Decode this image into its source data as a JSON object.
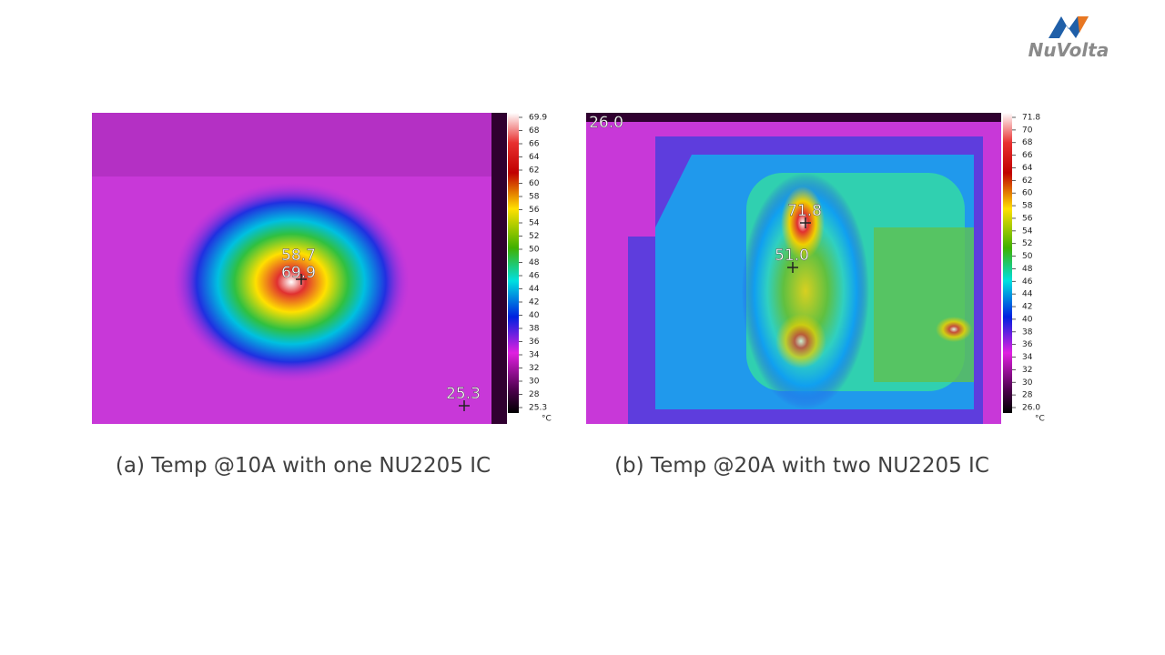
{
  "logo": "NuVolta",
  "panels": [
    {
      "caption": "(a) Temp @10A with one NU2205 IC",
      "spots": [
        "58.7",
        "69.9",
        "25.3"
      ],
      "scale": {
        "ticks": [
          "69.9",
          "68",
          "66",
          "64",
          "62",
          "60",
          "58",
          "56",
          "54",
          "52",
          "50",
          "48",
          "46",
          "44",
          "42",
          "40",
          "38",
          "36",
          "34",
          "32",
          "30",
          "28",
          "25.3"
        ],
        "unit": "°C"
      }
    },
    {
      "caption": "(b) Temp @20A with two NU2205 IC",
      "spots": [
        "26.0",
        "71.8",
        "51.0"
      ],
      "scale": {
        "ticks": [
          "71.8",
          "70",
          "68",
          "66",
          "64",
          "62",
          "60",
          "58",
          "56",
          "54",
          "52",
          "50",
          "48",
          "46",
          "44",
          "42",
          "40",
          "38",
          "36",
          "34",
          "32",
          "30",
          "28",
          "26.0"
        ],
        "unit": "°C"
      }
    }
  ]
}
